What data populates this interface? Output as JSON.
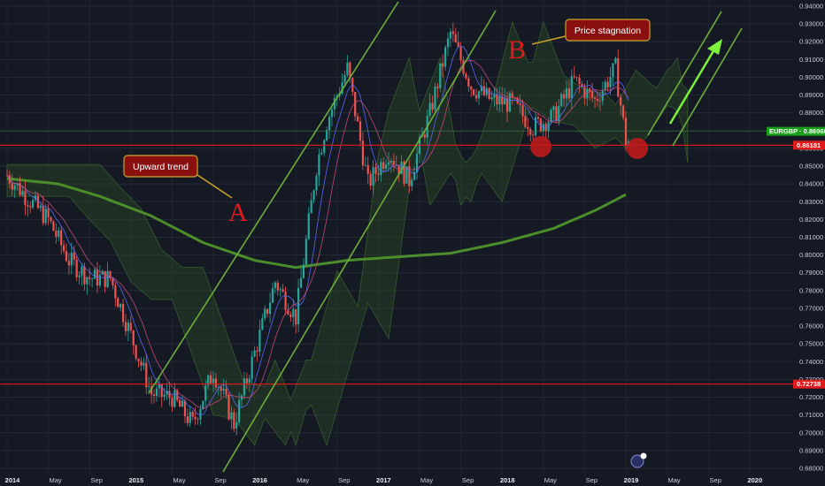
{
  "chart_data": {
    "type": "candlestick",
    "symbol": "EURGBP",
    "y_axis": {
      "ticks": [
        "0.94000",
        "0.93000",
        "0.92000",
        "0.91000",
        "0.90000",
        "0.89000",
        "0.88000",
        "0.87000",
        "0.86000",
        "0.85000",
        "0.84000",
        "0.83000",
        "0.82000",
        "0.81000",
        "0.80000",
        "0.79000",
        "0.78000",
        "0.77000",
        "0.76000",
        "0.75000",
        "0.74000",
        "0.73000",
        "0.72000",
        "0.71000",
        "0.70000",
        "0.69000",
        "0.68000"
      ],
      "range": [
        0.679,
        0.9415
      ]
    },
    "x_axis": {
      "ticks": [
        {
          "label": "2014",
          "year": true
        },
        {
          "label": "May",
          "year": false
        },
        {
          "label": "Sep",
          "year": false
        },
        {
          "label": "2015",
          "year": true
        },
        {
          "label": "May",
          "year": false
        },
        {
          "label": "Sep",
          "year": false
        },
        {
          "label": "2016",
          "year": true
        },
        {
          "label": "May",
          "year": false
        },
        {
          "label": "Sep",
          "year": false
        },
        {
          "label": "2017",
          "year": true
        },
        {
          "label": "May",
          "year": false
        },
        {
          "label": "Sep",
          "year": false
        },
        {
          "label": "2018",
          "year": true
        },
        {
          "label": "May",
          "year": false
        },
        {
          "label": "Sep",
          "year": false
        },
        {
          "label": "2019",
          "year": true
        },
        {
          "label": "May",
          "year": false
        },
        {
          "label": "Sep",
          "year": false
        },
        {
          "label": "2020",
          "year": true
        }
      ]
    },
    "price_key_points": [
      {
        "date": "2014-01",
        "price": 0.845
      },
      {
        "date": "2014-03",
        "price": 0.832
      },
      {
        "date": "2014-05",
        "price": 0.82
      },
      {
        "date": "2014-07",
        "price": 0.797
      },
      {
        "date": "2014-09",
        "price": 0.787
      },
      {
        "date": "2014-11",
        "price": 0.787
      },
      {
        "date": "2015-01",
        "price": 0.755
      },
      {
        "date": "2015-03",
        "price": 0.722
      },
      {
        "date": "2015-05",
        "price": 0.72
      },
      {
        "date": "2015-07",
        "price": 0.705
      },
      {
        "date": "2015-09",
        "price": 0.735
      },
      {
        "date": "2015-11",
        "price": 0.705
      },
      {
        "date": "2016-01",
        "price": 0.745
      },
      {
        "date": "2016-03",
        "price": 0.785
      },
      {
        "date": "2016-05",
        "price": 0.765
      },
      {
        "date": "2016-07",
        "price": 0.85
      },
      {
        "date": "2016-08",
        "price": 0.875
      },
      {
        "date": "2016-10",
        "price": 0.905
      },
      {
        "date": "2016-12",
        "price": 0.84
      },
      {
        "date": "2017-02",
        "price": 0.858
      },
      {
        "date": "2017-04",
        "price": 0.842
      },
      {
        "date": "2017-06",
        "price": 0.88
      },
      {
        "date": "2017-08",
        "price": 0.925
      },
      {
        "date": "2017-10",
        "price": 0.895
      },
      {
        "date": "2017-12",
        "price": 0.887
      },
      {
        "date": "2018-02",
        "price": 0.885
      },
      {
        "date": "2018-04",
        "price": 0.872
      },
      {
        "date": "2018-06",
        "price": 0.878
      },
      {
        "date": "2018-08",
        "price": 0.898
      },
      {
        "date": "2018-10",
        "price": 0.887
      },
      {
        "date": "2018-12",
        "price": 0.905
      },
      {
        "date": "2019-01",
        "price": 0.864
      }
    ],
    "moving_average_200": [
      {
        "date": "2014-01",
        "price": 0.843
      },
      {
        "date": "2014-06",
        "price": 0.84
      },
      {
        "date": "2014-10",
        "price": 0.833
      },
      {
        "date": "2015-03",
        "price": 0.822
      },
      {
        "date": "2015-08",
        "price": 0.807
      },
      {
        "date": "2016-01",
        "price": 0.797
      },
      {
        "date": "2016-05",
        "price": 0.793
      },
      {
        "date": "2016-10",
        "price": 0.797
      },
      {
        "date": "2017-03",
        "price": 0.799
      },
      {
        "date": "2017-08",
        "price": 0.801
      },
      {
        "date": "2018-01",
        "price": 0.807
      },
      {
        "date": "2018-06",
        "price": 0.815
      },
      {
        "date": "2018-10",
        "price": 0.825
      },
      {
        "date": "2019-01",
        "price": 0.834
      }
    ],
    "horizontal_levels": [
      {
        "label": "0.86181",
        "price": 0.86181,
        "color": "#e11b1b"
      },
      {
        "label": "0.72738",
        "price": 0.72738,
        "color": "#e11b1b"
      }
    ],
    "current_price_tag": {
      "label": "EURGBP · 0.86960",
      "price": 0.8696,
      "color": "#1aa11a"
    },
    "annotations": [
      {
        "text": "Upward trend",
        "letter": "A"
      },
      {
        "text": "Price stagnation",
        "letter": "B"
      }
    ],
    "colors": {
      "background": "#151924",
      "candle_up": "#26a69a",
      "candle_down": "#ef5350",
      "trend_channel": "#6cae3a",
      "ma_200": "#4b8d2a",
      "support_resistance": "#e11b1b",
      "callout_fill": "#8a1010",
      "projection_arrow": "#7cf23a"
    }
  }
}
